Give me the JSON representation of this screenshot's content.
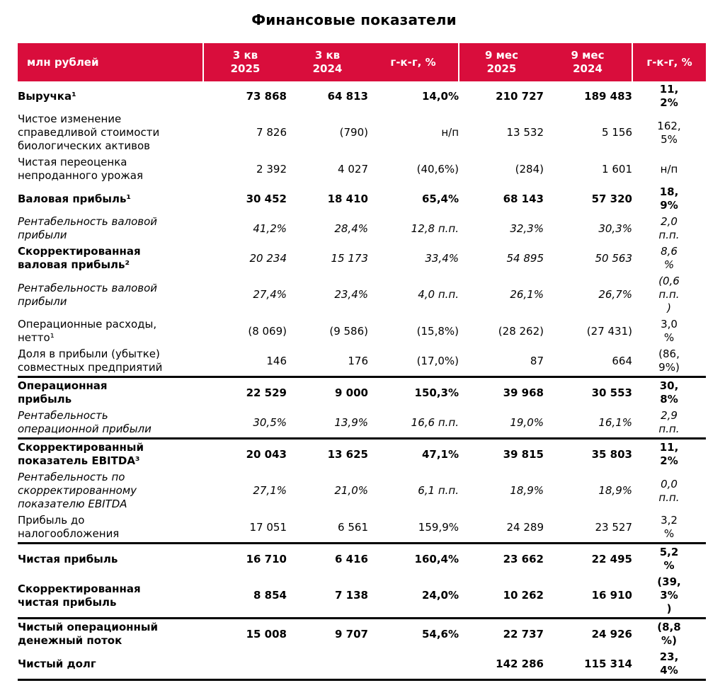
{
  "title": "Финансовые показатели",
  "colors": {
    "header_bg": "#D90D3C",
    "header_text": "#FFFFFF",
    "divider": "#000000"
  },
  "table": {
    "unit_header": "млн рублей",
    "columns": [
      "3 кв\n2025",
      "3 кв\n2024",
      "г-к-г, %",
      "9 мес\n2025",
      "9 мес\n2024",
      "г-к-г, %"
    ],
    "rows": [
      {
        "label": "Выручка¹",
        "style": "bold",
        "border_after": false,
        "values": [
          "73 868",
          "64 813",
          "14,0%",
          "210 727",
          "189 483",
          "11,\n2%"
        ]
      },
      {
        "label": "Чистое изменение\nсправедливой стоимости\nбиологических активов",
        "style": "plain",
        "border_after": false,
        "values": [
          "7 826",
          "(790)",
          "н/п",
          "13 532",
          "5 156",
          "162,\n5%"
        ]
      },
      {
        "label": "Чистая переоценка\nнепроданного урожая",
        "style": "plain",
        "border_after": false,
        "values": [
          "2 392",
          "4 027",
          "(40,6%)",
          "(284)",
          "1 601",
          "н/п"
        ]
      },
      {
        "label": "Валовая прибыль¹",
        "style": "bold",
        "border_after": false,
        "values": [
          "30 452",
          "18 410",
          "65,4%",
          "68 143",
          "57 320",
          "18,\n9%"
        ]
      },
      {
        "label": "Рентабельность валовой\nприбыли",
        "style": "italic",
        "border_after": false,
        "values": [
          "41,2%",
          "28,4%",
          "12,8 п.п.",
          "32,3%",
          "30,3%",
          "2,0\nп.п."
        ]
      },
      {
        "label": "Скорректированная\nваловая прибыль²",
        "style": "mixed",
        "border_after": false,
        "values": [
          "20 234",
          "15 173",
          "33,4%",
          "54 895",
          "50 563",
          "8,6\n%"
        ]
      },
      {
        "label": "Рентабельность валовой\nприбыли",
        "style": "italic",
        "border_after": false,
        "values": [
          "27,4%",
          "23,4%",
          "4,0 п.п.",
          "26,1%",
          "26,7%",
          "(0,6\nп.п.\n)"
        ]
      },
      {
        "label": "Операционные расходы,\nнетто¹",
        "style": "plain",
        "border_after": false,
        "values": [
          "(8 069)",
          "(9 586)",
          "(15,8%)",
          "(28 262)",
          "(27 431)",
          "3,0\n%"
        ]
      },
      {
        "label": "Доля в прибыли (убытке)\nсовместных предприятий",
        "style": "plain",
        "border_after": true,
        "values": [
          "146",
          "176",
          "(17,0%)",
          "87",
          "664",
          "(86,\n9%)"
        ]
      },
      {
        "label": "Операционная\nприбыль",
        "style": "bold",
        "border_after": false,
        "values": [
          "22 529",
          "9 000",
          "150,3%",
          "39 968",
          "30 553",
          "30,\n8%"
        ]
      },
      {
        "label": "Рентабельность\nоперационной прибыли",
        "style": "italic",
        "border_after": true,
        "values": [
          "30,5%",
          "13,9%",
          "16,6 п.п.",
          "19,0%",
          "16,1%",
          "2,9\nп.п."
        ]
      },
      {
        "label": "Скорректированный\nпоказатель EBITDA³",
        "style": "bold",
        "border_after": false,
        "values": [
          "20 043",
          "13 625",
          "47,1%",
          "39 815",
          "35 803",
          "11,\n2%"
        ]
      },
      {
        "label": "Рентабельность по\nскорректированному\nпоказателю EBITDA",
        "style": "italic",
        "border_after": false,
        "values": [
          "27,1%",
          "21,0%",
          "6,1 п.п.",
          "18,9%",
          "18,9%",
          "0,0\nп.п."
        ]
      },
      {
        "label": "Прибыль до\nналогообложения",
        "style": "plain",
        "border_after": true,
        "values": [
          "17 051",
          "6 561",
          "159,9%",
          "24 289",
          "23 527",
          "3,2\n%"
        ]
      },
      {
        "label": "Чистая прибыль",
        "style": "bold",
        "border_after": false,
        "values": [
          "16 710",
          "6 416",
          "160,4%",
          "23 662",
          "22 495",
          "5,2\n%"
        ]
      },
      {
        "label": "Скорректированная\nчистая прибыль",
        "style": "bold",
        "border_after": true,
        "values": [
          "8 854",
          "7 138",
          "24,0%",
          "10 262",
          "16 910",
          "(39,\n3%\n)"
        ]
      },
      {
        "label": "Чистый операционный\nденежный поток",
        "style": "bold",
        "border_after": false,
        "values": [
          "15 008",
          "9 707",
          "54,6%",
          "22 737",
          "24 926",
          "(8,8\n%)"
        ]
      },
      {
        "label": "Чистый долг",
        "style": "bold",
        "border_after": true,
        "values": [
          "",
          "",
          "",
          "142 286",
          "115 314",
          "23,\n4%"
        ]
      }
    ]
  }
}
